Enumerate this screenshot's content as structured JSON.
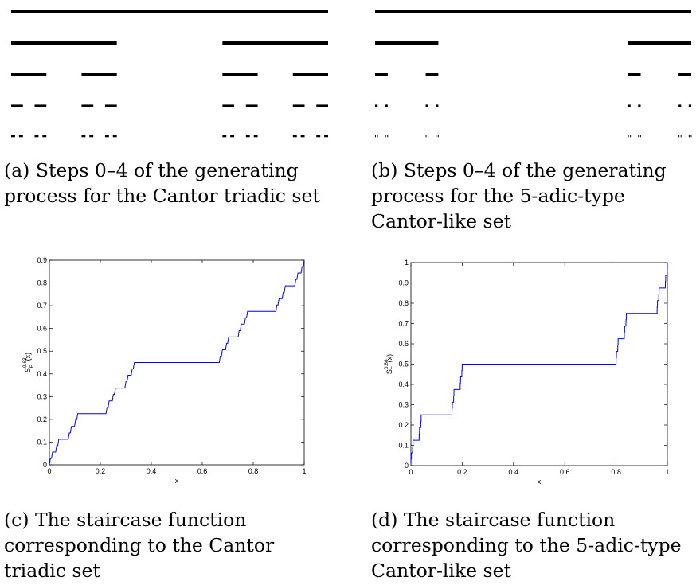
{
  "figure": {
    "a": {
      "label": "(a)",
      "caption": "Steps 0–4 of the generating process for the Cantor triadic set"
    },
    "b": {
      "label": "(b)",
      "caption": "Steps 0–4 of the generating process for the 5-adic-type Cantor-like set"
    },
    "c": {
      "label": "(c)",
      "caption": "The staircase function corresponding to the Cantor triadic set"
    },
    "d": {
      "label": "(d)",
      "caption": "The staircase function corresponding to the 5-adic-type Cantor-like set"
    }
  },
  "cantor_sets": [
    {
      "id": "triadic",
      "steps": 5,
      "ratio": 0.333333,
      "description": "keep first and last thirds"
    },
    {
      "id": "5-adic",
      "steps": 5,
      "ratio": 0.2,
      "description": "keep first and last fifths"
    }
  ],
  "chart_data": [
    {
      "type": "line",
      "id": "staircase-triadic",
      "xlabel": "x",
      "ylabel_base": "S",
      "ylabel_sub": "F",
      "ylabel_sup": "0.63",
      "ylabel_arg": "(x)",
      "xlim": [
        0,
        1
      ],
      "ylim": [
        0,
        0.9
      ],
      "xticks": [
        "0",
        "0.2",
        "0.4",
        "0.6",
        "0.8",
        "1"
      ],
      "yticks": [
        "0",
        "0.1",
        "0.2",
        "0.3",
        "0.4",
        "0.5",
        "0.6",
        "0.7",
        "0.8",
        "0.9"
      ],
      "ratio": 0.333333,
      "depth": 5,
      "dimension": 0.63,
      "color": "#0000ff"
    },
    {
      "type": "line",
      "id": "staircase-5adic",
      "xlabel": "x",
      "ylabel_base": "S",
      "ylabel_sub": "F",
      "ylabel_sup": "0.86",
      "ylabel_arg": "(x)",
      "xlim": [
        0,
        1
      ],
      "ylim": [
        0,
        1
      ],
      "xticks": [
        "0",
        "0.2",
        "0.4",
        "0.6",
        "0.8",
        "1"
      ],
      "yticks": [
        "0",
        "0.1",
        "0.2",
        "0.3",
        "0.4",
        "0.5",
        "0.6",
        "0.7",
        "0.8",
        "0.9",
        "1"
      ],
      "ratio": 0.2,
      "depth": 5,
      "dimension": 0.86,
      "color": "#0000ff"
    }
  ]
}
